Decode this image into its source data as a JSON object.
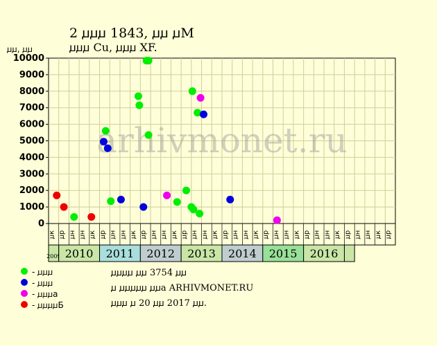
{
  "title": {
    "line1": "2 ꙡꙡꙡ 1843, ꙡꙡ ꙡМ",
    "line2": "ꙡꙡꙡ Cu, ꙡꙡꙡ XF."
  },
  "unit": "ꙡꙡ, ꙡꙡ",
  "watermark": "arhivmonet.ru",
  "legend": [
    {
      "label": "- ꙡꙡꙡ",
      "color": "#00ee00"
    },
    {
      "label": "- ꙡꙡꙡ",
      "color": "#0000dd"
    },
    {
      "label": "- ꙡꙡꙡa",
      "color": "#ee00ee"
    },
    {
      "label": "- ꙡꙡꙡꙡБ",
      "color": "#ee0000"
    }
  ],
  "note": {
    "line1": "ꙡꙡꙡꙡ ꙡꙡ 3754 ꙡꙡ",
    "line2": "ꙡ ꙡꙡꙡꙡꙡ ꙡꙡa ARHIVMONET.RU",
    "line3": "ꙡꙡꙡ ꙡ 20 ꙡꙡ 2017 ꙡꙡ."
  },
  "chart_data": {
    "type": "scatter",
    "ylim": [
      0,
      10000
    ],
    "yticks": [
      0,
      1000,
      2000,
      3000,
      4000,
      5000,
      6000,
      7000,
      8000,
      9000,
      10000
    ],
    "grid": true,
    "slots": [
      "ꙡк",
      "ꙡр",
      "ꙡн",
      "ꙡн",
      "ꙡк",
      "ꙡр",
      "ꙡн",
      "ꙡн",
      "ꙡк",
      "ꙡр",
      "ꙡн",
      "ꙡн",
      "ꙡк",
      "ꙡр",
      "ꙡн",
      "ꙡн",
      "ꙡк",
      "ꙡр",
      "ꙡн",
      "ꙡн",
      "ꙡк",
      "ꙡр",
      "ꙡн",
      "ꙡн",
      "ꙡк",
      "ꙡр",
      "ꙡн",
      "ꙡн",
      "ꙡк",
      "ꙡр",
      "ꙡн",
      "ꙡн",
      "ꙡк",
      "ꙡр"
    ],
    "years": [
      {
        "label": "2009",
        "start": 0,
        "span": 1,
        "color": "#c9e6a6"
      },
      {
        "label": "2010",
        "start": 1,
        "span": 4,
        "color": "#c9e6a6"
      },
      {
        "label": "2011",
        "start": 5,
        "span": 4,
        "color": "#a9dedc"
      },
      {
        "label": "2012",
        "start": 9,
        "span": 4,
        "color": "#bfcdcf"
      },
      {
        "label": "2013",
        "start": 13,
        "span": 4,
        "color": "#c9e6a6"
      },
      {
        "label": "2014",
        "start": 17,
        "span": 4,
        "color": "#bfcdcf"
      },
      {
        "label": "2015",
        "start": 21,
        "span": 4,
        "color": "#99e099"
      },
      {
        "label": "2016",
        "start": 25,
        "span": 4,
        "color": "#c9e6a6"
      },
      {
        "label": "",
        "start": 29,
        "span": 1,
        "color": "#c9e6a6"
      }
    ],
    "series": [
      {
        "color": "#00ee00",
        "points": [
          [
            2.0,
            400
          ],
          [
            5.1,
            5600
          ],
          [
            5.6,
            1350
          ],
          [
            8.3,
            7700
          ],
          [
            8.4,
            7150
          ],
          [
            9.1,
            9850
          ],
          [
            9.3,
            9850
          ],
          [
            9.3,
            5350
          ],
          [
            12.1,
            1300
          ],
          [
            13.0,
            2000
          ],
          [
            13.5,
            1000
          ],
          [
            13.7,
            850
          ],
          [
            13.6,
            8000
          ],
          [
            14.1,
            6700
          ],
          [
            14.3,
            600
          ]
        ]
      },
      {
        "color": "#0000dd",
        "points": [
          [
            4.9,
            4950
          ],
          [
            5.3,
            4550
          ],
          [
            6.6,
            1450
          ],
          [
            8.8,
            1000
          ],
          [
            14.7,
            6600
          ],
          [
            17.3,
            1450
          ]
        ]
      },
      {
        "color": "#ee00ee",
        "points": [
          [
            11.1,
            1700
          ],
          [
            14.4,
            7600
          ],
          [
            21.9,
            200
          ]
        ]
      },
      {
        "color": "#ee0000",
        "points": [
          [
            0.3,
            1700
          ],
          [
            1.0,
            1000
          ],
          [
            3.7,
            400
          ]
        ]
      }
    ]
  }
}
